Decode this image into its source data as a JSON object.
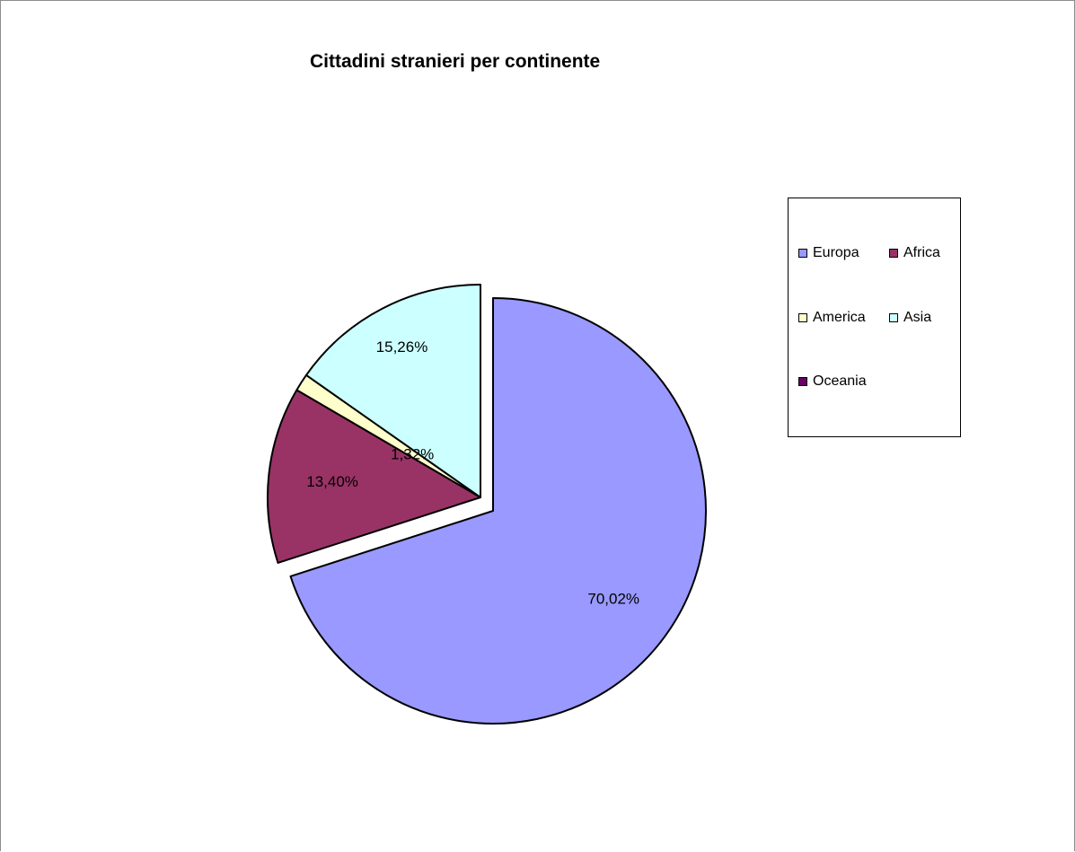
{
  "chart_data": {
    "type": "pie",
    "title": "Cittadini stranieri per continente",
    "categories": [
      "Europa",
      "Africa",
      "America",
      "Asia",
      "Oceania"
    ],
    "values": [
      70.02,
      13.4,
      1.32,
      15.26,
      0.0
    ],
    "data_labels": [
      "70,02%",
      "13,40%",
      "1,32%",
      "15,26%",
      ""
    ],
    "colors": [
      "#9999ff",
      "#993366",
      "#ffffcc",
      "#ccffff",
      "#660066"
    ],
    "legend_position": "right",
    "exploded": true
  }
}
